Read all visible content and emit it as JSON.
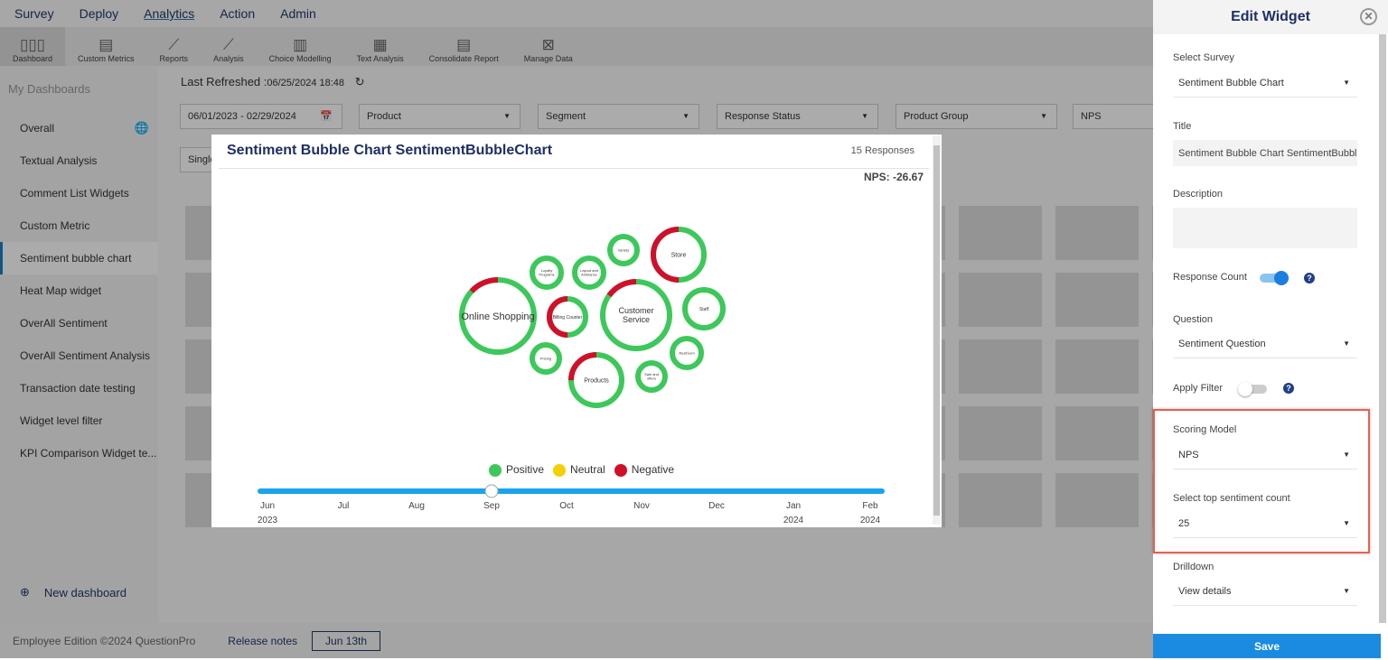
{
  "topnav": {
    "items": [
      "Survey",
      "Deploy",
      "Analytics",
      "Action",
      "Admin"
    ],
    "active": "Analytics"
  },
  "subnav": {
    "items": [
      {
        "label": "Dashboard",
        "icon": "bar-chart-icon"
      },
      {
        "label": "Custom Metrics",
        "icon": "document-icon"
      },
      {
        "label": "Reports",
        "icon": "line-chart-icon"
      },
      {
        "label": "Analysis",
        "icon": "analysis-chart-icon"
      },
      {
        "label": "Choice Modelling",
        "icon": "choice-chart-icon"
      },
      {
        "label": "Text Analysis",
        "icon": "text-doc-icon"
      },
      {
        "label": "Consolidate Report",
        "icon": "report-icon"
      },
      {
        "label": "Manage Data",
        "icon": "excel-icon"
      }
    ]
  },
  "sidebar": {
    "heading": "My Dashboards",
    "items": [
      "Overall",
      "Textual Analysis",
      "Comment List Widgets",
      "Custom Metric",
      "Sentiment bubble chart",
      "Heat Map widget",
      "OverAll Sentiment",
      "OverAll Sentiment Analysis",
      "Transaction date testing",
      "Widget level filter",
      "KPI Comparison Widget te..."
    ],
    "selected": "Sentiment bubble chart",
    "new_dashboard": "New dashboard"
  },
  "main": {
    "refresh_label": "Last Refreshed :",
    "refresh_time": "06/25/2024 18:48",
    "filters": {
      "date_range": "06/01/2023 - 02/29/2024",
      "product": "Product",
      "segment": "Segment",
      "response_status": "Response Status",
      "product_group": "Product Group",
      "nps": "NPS",
      "single": "Single"
    }
  },
  "widget": {
    "title": "Sentiment Bubble Chart SentimentBubbleChart",
    "responses": "15 Responses",
    "nps": "NPS: -26.67",
    "legend": {
      "positive": "Positive",
      "neutral": "Neutral",
      "negative": "Negative"
    },
    "colors": {
      "positive": "#3cc85a",
      "neutral": "#f5d000",
      "negative": "#d0102a"
    },
    "bubbles": [
      {
        "label": "Online Shopping",
        "negative": 0.13
      },
      {
        "label": "Loyalty Programs",
        "negative": 0
      },
      {
        "label": "Layout and Ambiance",
        "negative": 0
      },
      {
        "label": "Variety",
        "negative": 0
      },
      {
        "label": "Store",
        "negative": 0.5
      },
      {
        "label": "Billing Counter",
        "negative": 0.5
      },
      {
        "label": "Customer Service",
        "negative": 0.15
      },
      {
        "label": "Staff",
        "negative": 0
      },
      {
        "label": "Pricing",
        "negative": 0
      },
      {
        "label": "Products",
        "negative": 0.25
      },
      {
        "label": "Sale and offers",
        "negative": 0
      },
      {
        "label": "Restroom",
        "negative": 0
      }
    ],
    "timeline": {
      "ticks": [
        [
          "Jun",
          "2023"
        ],
        [
          "Jul",
          ""
        ],
        [
          "Aug",
          ""
        ],
        [
          "Sep",
          ""
        ],
        [
          "Oct",
          ""
        ],
        [
          "Nov",
          ""
        ],
        [
          "Dec",
          ""
        ],
        [
          "Jan",
          "2024"
        ],
        [
          "Feb",
          "2024"
        ]
      ],
      "selected": "Sep"
    }
  },
  "panel": {
    "title": "Edit Widget",
    "select_survey_label": "Select Survey",
    "select_survey": "Sentiment Bubble Chart",
    "title_label": "Title",
    "title_value": "Sentiment Bubble Chart  SentimentBubbleChart",
    "description_label": "Description",
    "response_count_label": "Response Count",
    "response_count_on": true,
    "question_label": "Question",
    "question": "Sentiment Question",
    "apply_filter_label": "Apply Filter",
    "apply_filter_on": false,
    "scoring_model_label": "Scoring Model",
    "scoring_model": "NPS",
    "top_count_label": "Select top sentiment count",
    "top_count": "25",
    "drilldown_label": "Drilldown",
    "drilldown": "View details",
    "save": "Save"
  },
  "footer": {
    "edition": "Employee Edition ©2024 QuestionPro",
    "release_notes": "Release notes",
    "version": "Jun 13th"
  }
}
